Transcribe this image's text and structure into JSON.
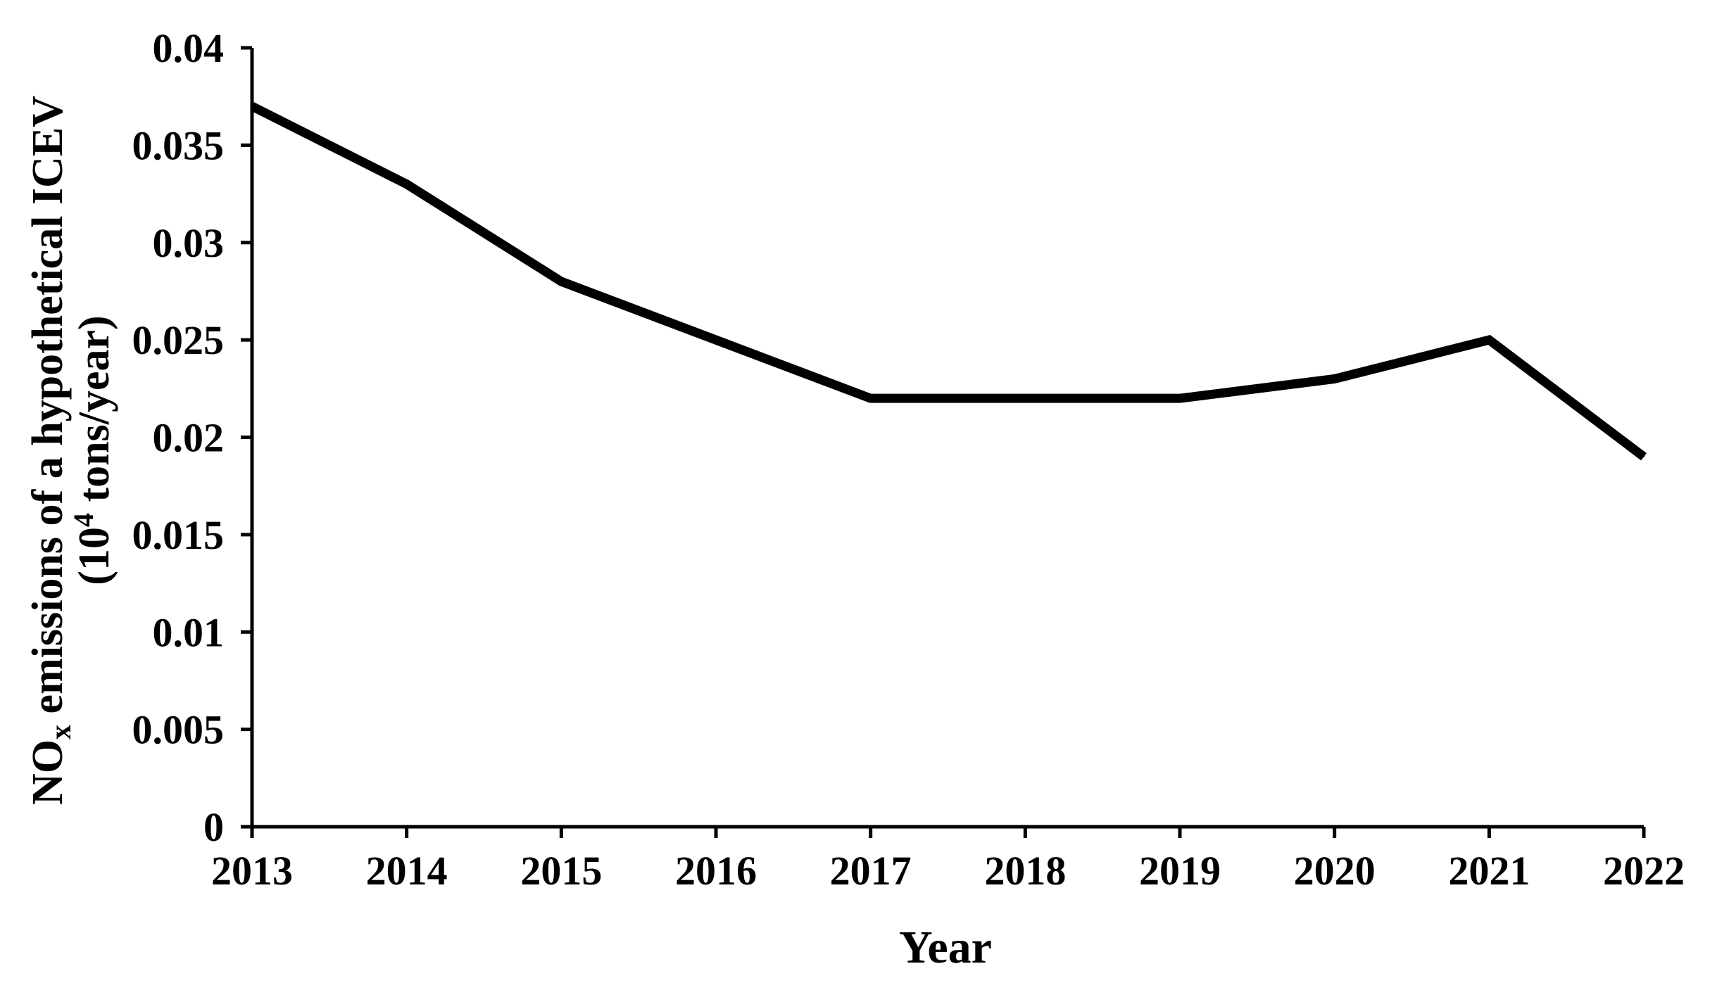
{
  "chart_data": {
    "type": "line",
    "title": "",
    "xlabel": "Year",
    "ylabel": {
      "line1_main": "NO",
      "line1_sub": "x",
      "line1_rest": " emissions of a hypothetical ICEV",
      "line2_pre": "(10",
      "line2_sup": "4",
      "line2_post": " tons/year)"
    },
    "x": [
      "2013",
      "2014",
      "2015",
      "2016",
      "2017",
      "2018",
      "2019",
      "2020",
      "2021",
      "2022"
    ],
    "series": [
      {
        "values": [
          0.037,
          0.033,
          0.028,
          0.025,
          0.022,
          0.022,
          0.022,
          0.023,
          0.025,
          0.019
        ]
      }
    ],
    "yticks": [
      "0",
      "0.005",
      "0.01",
      "0.015",
      "0.02",
      "0.025",
      "0.03",
      "0.035",
      "0.04"
    ],
    "ylim": [
      0,
      0.04
    ],
    "grid": false,
    "legend": "none",
    "line_color": "#000000"
  }
}
